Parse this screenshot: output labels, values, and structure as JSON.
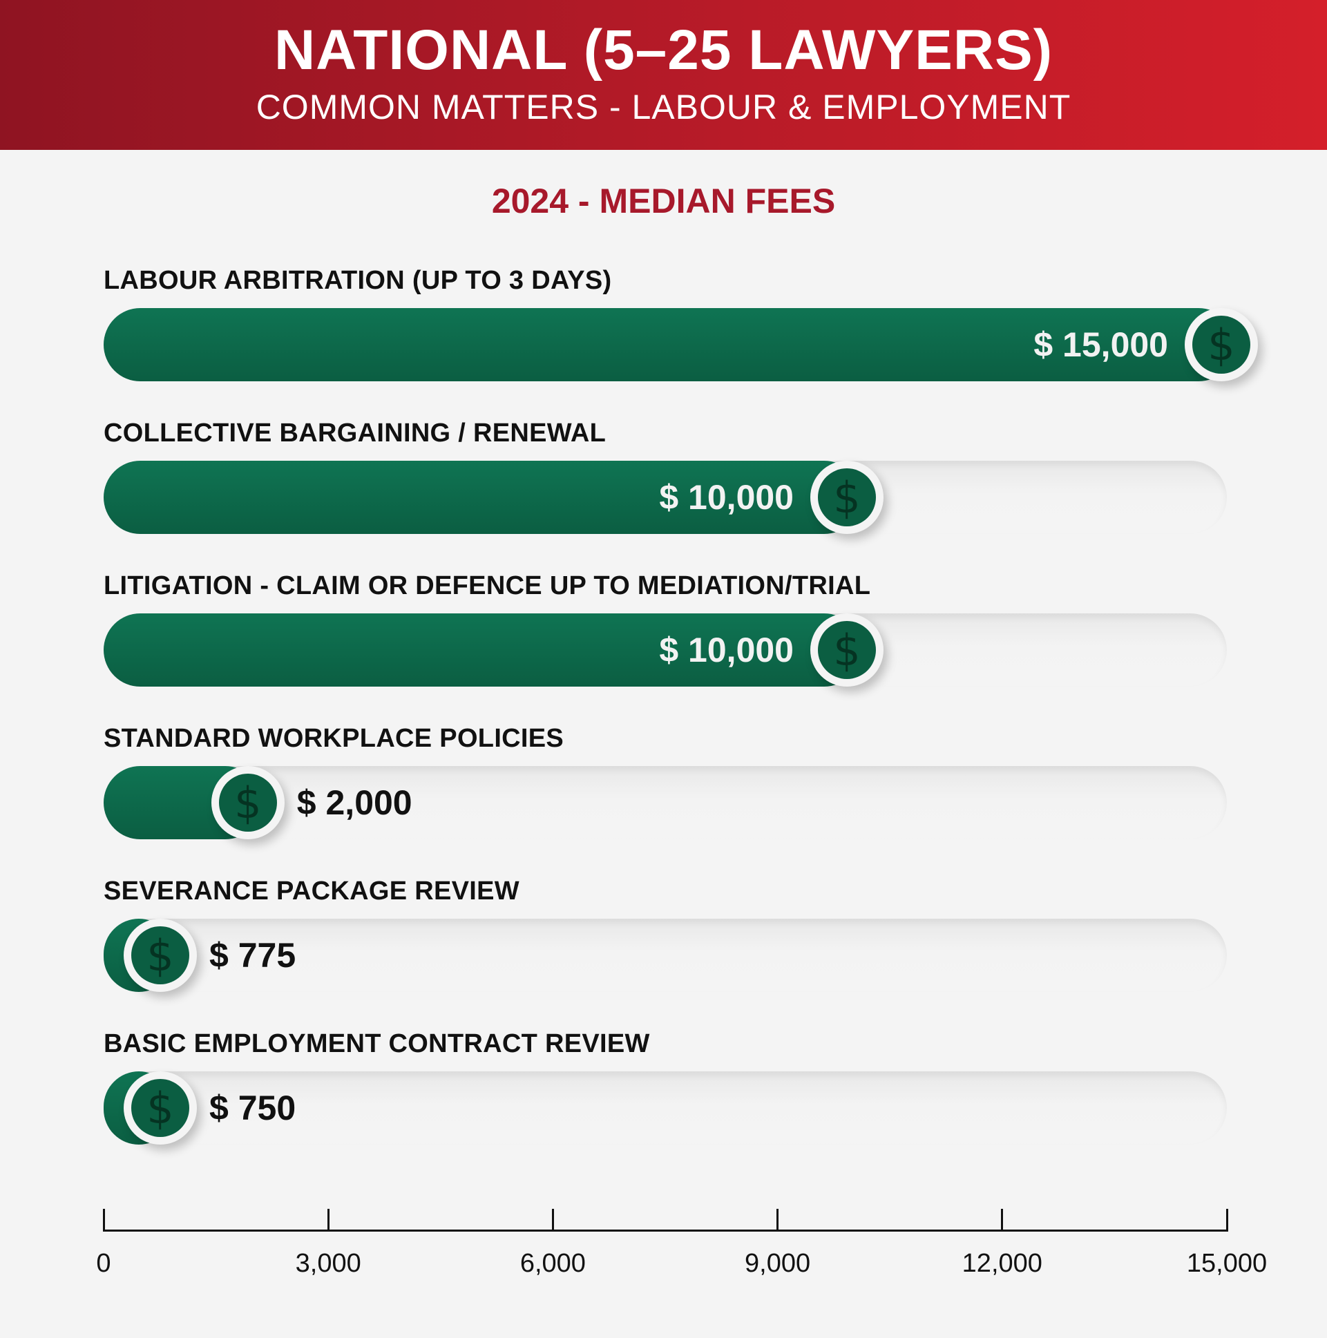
{
  "header": {
    "title": "NATIONAL (5–25 LAWYERS)",
    "subtitle": "COMMON MATTERS - LABOUR & EMPLOYMENT"
  },
  "chart_data": {
    "type": "bar",
    "title": "2024 - MEDIAN FEES",
    "categories": [
      "LABOUR ARBITRATION (UP TO 3 DAYS)",
      "COLLECTIVE BARGAINING / RENEWAL",
      "LITIGATION - CLAIM OR DEFENCE UP TO MEDIATION/TRIAL",
      "STANDARD WORKPLACE POLICIES",
      "SEVERANCE PACKAGE REVIEW",
      "BASIC EMPLOYMENT CONTRACT REVIEW"
    ],
    "values": [
      15000,
      10000,
      10000,
      2000,
      775,
      750
    ],
    "value_labels": [
      "$ 15,000",
      "$ 10,000",
      "$ 10,000",
      "$ 2,000",
      "$ 775",
      "$ 750"
    ],
    "xlim": [
      0,
      15000
    ],
    "xticks": [
      0,
      3000,
      6000,
      9000,
      12000,
      15000
    ],
    "xtick_labels": [
      "0",
      "3,000",
      "6,000",
      "9,000",
      "12,000",
      "15,000"
    ],
    "orientation": "horizontal",
    "bar_color": "#0b5e42",
    "marker_icon": "dollar-coin-icon",
    "marker_glyph": "$"
  },
  "colors": {
    "header_red": "#b81b28",
    "title_red": "#a7192b",
    "bar_green": "#0b5e42"
  }
}
